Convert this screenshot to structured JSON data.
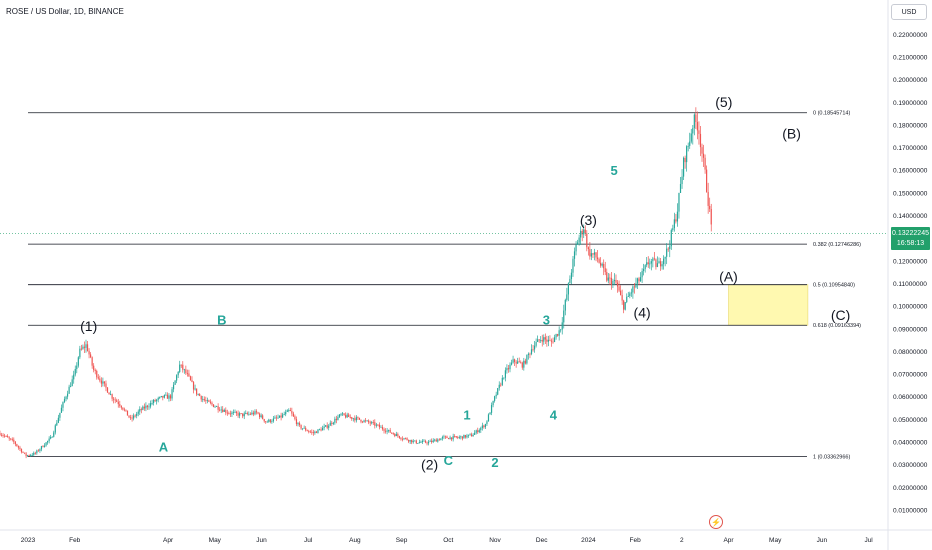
{
  "header": {
    "title": "ROSE / US Dollar, 1D, BINANCE",
    "currency_button": "USD"
  },
  "price_badge": {
    "price": "0.13222245",
    "countdown": "16:58:13",
    "color": "#22a06b"
  },
  "time_marker_icon": "lightning-icon",
  "colors": {
    "up": "#26a69a",
    "down": "#ef5350",
    "fib_line": "#131722",
    "fib_zone": "#fff9b0",
    "wave_minor": "#26a69a"
  },
  "chart_data": {
    "type": "candlestick",
    "title": "ROSE / US Dollar, 1D, BINANCE",
    "ylim": [
      0.0,
      0.24
    ],
    "y_ticks": [
      {
        "value": 0.01,
        "label": "0.01000000"
      },
      {
        "value": 0.02,
        "label": "0.02000000"
      },
      {
        "value": 0.03,
        "label": "0.03000000"
      },
      {
        "value": 0.04,
        "label": "0.04000000"
      },
      {
        "value": 0.05,
        "label": "0.05000000"
      },
      {
        "value": 0.06,
        "label": "0.06000000"
      },
      {
        "value": 0.07,
        "label": "0.07000000"
      },
      {
        "value": 0.08,
        "label": "0.08000000"
      },
      {
        "value": 0.09,
        "label": "0.09000000"
      },
      {
        "value": 0.1,
        "label": "0.10000000"
      },
      {
        "value": 0.11,
        "label": "0.11000000"
      },
      {
        "value": 0.12,
        "label": "0.12000000"
      },
      {
        "value": 0.13,
        "label": "0.13000000"
      },
      {
        "value": 0.14,
        "label": "0.14000000"
      },
      {
        "value": 0.15,
        "label": "0.15000000"
      },
      {
        "value": 0.16,
        "label": "0.16000000"
      },
      {
        "value": 0.17,
        "label": "0.17000000"
      },
      {
        "value": 0.18,
        "label": "0.18000000"
      },
      {
        "value": 0.19,
        "label": "0.19000000"
      },
      {
        "value": 0.2,
        "label": "0.20000000"
      },
      {
        "value": 0.21,
        "label": "0.21000000"
      },
      {
        "value": 0.22,
        "label": "0.22000000"
      }
    ],
    "x_ticks": [
      {
        "t": 0,
        "label": "2023"
      },
      {
        "t": 1.0,
        "label": "Feb"
      },
      {
        "t": 3.0,
        "label": "Apr"
      },
      {
        "t": 4.0,
        "label": "May"
      },
      {
        "t": 5.0,
        "label": "Jun"
      },
      {
        "t": 6.0,
        "label": "Jul"
      },
      {
        "t": 7.0,
        "label": "Aug"
      },
      {
        "t": 8.0,
        "label": "Sep"
      },
      {
        "t": 9.0,
        "label": "Oct"
      },
      {
        "t": 10.0,
        "label": "Nov"
      },
      {
        "t": 11.0,
        "label": "Dec"
      },
      {
        "t": 12.0,
        "label": "2024"
      },
      {
        "t": 13.0,
        "label": "Feb"
      },
      {
        "t": 14.0,
        "label": "2"
      },
      {
        "t": 15.0,
        "label": "Apr"
      },
      {
        "t": 16.0,
        "label": "May"
      },
      {
        "t": 17.0,
        "label": "Jun"
      },
      {
        "t": 18.0,
        "label": "Jul"
      }
    ],
    "price_path": [
      [
        -0.6,
        0.044
      ],
      [
        -0.3,
        0.04
      ],
      [
        -0.05,
        0.034
      ],
      [
        0.15,
        0.035
      ],
      [
        0.5,
        0.042
      ],
      [
        0.8,
        0.06
      ],
      [
        1.0,
        0.07
      ],
      [
        1.1,
        0.08
      ],
      [
        1.25,
        0.083
      ],
      [
        1.4,
        0.072
      ],
      [
        1.6,
        0.066
      ],
      [
        1.8,
        0.06
      ],
      [
        2.0,
        0.056
      ],
      [
        2.2,
        0.05
      ],
      [
        2.4,
        0.054
      ],
      [
        2.7,
        0.058
      ],
      [
        2.9,
        0.06
      ],
      [
        3.05,
        0.06
      ],
      [
        3.25,
        0.074
      ],
      [
        3.4,
        0.07
      ],
      [
        3.6,
        0.062
      ],
      [
        3.8,
        0.058
      ],
      [
        4.0,
        0.056
      ],
      [
        4.3,
        0.053
      ],
      [
        4.6,
        0.052
      ],
      [
        4.9,
        0.053
      ],
      [
        5.1,
        0.049
      ],
      [
        5.4,
        0.051
      ],
      [
        5.6,
        0.054
      ],
      [
        5.8,
        0.047
      ],
      [
        6.1,
        0.044
      ],
      [
        6.4,
        0.047
      ],
      [
        6.7,
        0.052
      ],
      [
        6.9,
        0.051
      ],
      [
        7.1,
        0.05
      ],
      [
        7.4,
        0.048
      ],
      [
        7.7,
        0.045
      ],
      [
        8.0,
        0.042
      ],
      [
        8.3,
        0.04
      ],
      [
        8.6,
        0.04
      ],
      [
        8.9,
        0.042
      ],
      [
        9.2,
        0.042
      ],
      [
        9.5,
        0.043
      ],
      [
        9.8,
        0.048
      ],
      [
        10.0,
        0.06
      ],
      [
        10.2,
        0.07
      ],
      [
        10.4,
        0.076
      ],
      [
        10.6,
        0.074
      ],
      [
        10.8,
        0.082
      ],
      [
        11.0,
        0.086
      ],
      [
        11.2,
        0.084
      ],
      [
        11.4,
        0.09
      ],
      [
        11.6,
        0.112
      ],
      [
        11.75,
        0.128
      ],
      [
        11.9,
        0.135
      ],
      [
        12.0,
        0.124
      ],
      [
        12.2,
        0.121
      ],
      [
        12.4,
        0.112
      ],
      [
        12.6,
        0.11
      ],
      [
        12.75,
        0.1
      ],
      [
        12.9,
        0.106
      ],
      [
        13.1,
        0.112
      ],
      [
        13.3,
        0.12
      ],
      [
        13.5,
        0.118
      ],
      [
        13.7,
        0.125
      ],
      [
        13.9,
        0.142
      ],
      [
        14.05,
        0.165
      ],
      [
        14.15,
        0.172
      ],
      [
        14.25,
        0.182
      ],
      [
        14.35,
        0.18
      ],
      [
        14.5,
        0.158
      ],
      [
        14.65,
        0.132
      ]
    ],
    "fib_levels": [
      {
        "ratio": "0",
        "price": 0.18545714,
        "label": "0 (0.18545714)"
      },
      {
        "ratio": "0.382",
        "price": 0.12746286,
        "label": "0.382 (0.12746286)"
      },
      {
        "ratio": "0.5",
        "price": 0.1095484,
        "label": "0.5 (0.10954840)"
      },
      {
        "ratio": "0.618",
        "price": 0.09163394,
        "label": "0.618 (0.09163394)"
      },
      {
        "ratio": "1",
        "price": 0.03362966,
        "label": "1 (0.03362966)"
      }
    ],
    "target_zone": {
      "t_start": 15.0,
      "t_end": 16.7,
      "price_top": 0.1095484,
      "price_bottom": 0.09163394
    },
    "wave_labels_major": [
      {
        "text": "(1)",
        "t": 1.3,
        "price": 0.089
      },
      {
        "text": "(2)",
        "t": 8.6,
        "price": 0.028
      },
      {
        "text": "(3)",
        "t": 12.0,
        "price": 0.136
      },
      {
        "text": "(4)",
        "t": 13.15,
        "price": 0.095
      },
      {
        "text": "(5)",
        "t": 14.9,
        "price": 0.188
      },
      {
        "text": "(A)",
        "t": 15.0,
        "price": 0.111
      },
      {
        "text": "(B)",
        "t": 16.35,
        "price": 0.174
      },
      {
        "text": "(C)",
        "t": 17.4,
        "price": 0.094
      }
    ],
    "wave_labels_minor": [
      {
        "text": "A",
        "t": 2.9,
        "price": 0.036
      },
      {
        "text": "B",
        "t": 4.15,
        "price": 0.092
      },
      {
        "text": "C",
        "t": 9.0,
        "price": 0.03
      },
      {
        "text": "1",
        "t": 9.4,
        "price": 0.05
      },
      {
        "text": "2",
        "t": 10.0,
        "price": 0.029
      },
      {
        "text": "3",
        "t": 11.1,
        "price": 0.092
      },
      {
        "text": "4",
        "t": 11.25,
        "price": 0.05
      },
      {
        "text": "5",
        "t": 12.55,
        "price": 0.158
      }
    ],
    "current_price": 0.13222245,
    "grid": false
  }
}
